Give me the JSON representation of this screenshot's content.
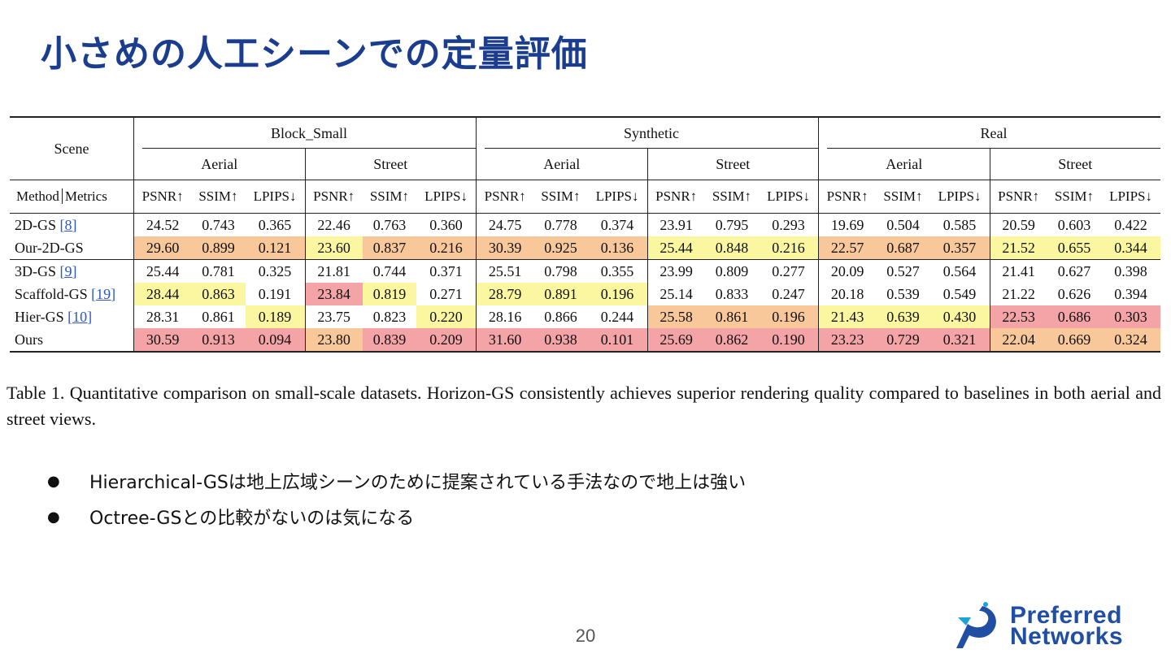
{
  "title": "小さめの人工シーンでの定量評価",
  "table": {
    "scene_label": "Scene",
    "method_label": "Method",
    "metrics_label": "Metrics",
    "datasets": [
      "Block_Small",
      "Synthetic",
      "Real"
    ],
    "views": [
      "Aerial",
      "Street",
      "Aerial",
      "Street",
      "Aerial",
      "Street"
    ],
    "metrics": [
      "PSNR↑",
      "SSIM↑",
      "LPIPS↓"
    ],
    "colors": {
      "red": "#f4a3a6",
      "orange": "#f9c89a",
      "yellow": "#fbf7a1"
    },
    "groups": [
      [
        {
          "name": "2D-GS",
          "ref": "[8]",
          "values": [
            "24.52",
            "0.743",
            "0.365",
            "22.46",
            "0.763",
            "0.360",
            "24.75",
            "0.778",
            "0.374",
            "23.91",
            "0.795",
            "0.293",
            "19.69",
            "0.504",
            "0.585",
            "20.59",
            "0.603",
            "0.422"
          ],
          "colors": [
            "",
            "",
            "",
            "",
            "",
            "",
            "",
            "",
            "",
            "",
            "",
            "",
            "",
            "",
            "",
            "",
            "",
            ""
          ]
        },
        {
          "name": "Our-2D-GS",
          "ref": "",
          "values": [
            "29.60",
            "0.899",
            "0.121",
            "23.60",
            "0.837",
            "0.216",
            "30.39",
            "0.925",
            "0.136",
            "25.44",
            "0.848",
            "0.216",
            "22.57",
            "0.687",
            "0.357",
            "21.52",
            "0.655",
            "0.344"
          ],
          "colors": [
            "orange",
            "orange",
            "orange",
            "yellow",
            "orange",
            "orange",
            "orange",
            "orange",
            "orange",
            "yellow",
            "yellow",
            "yellow",
            "orange",
            "orange",
            "orange",
            "yellow",
            "yellow",
            "yellow"
          ]
        }
      ],
      [
        {
          "name": "3D-GS",
          "ref": "[9]",
          "values": [
            "25.44",
            "0.781",
            "0.325",
            "21.81",
            "0.744",
            "0.371",
            "25.51",
            "0.798",
            "0.355",
            "23.99",
            "0.809",
            "0.277",
            "20.09",
            "0.527",
            "0.564",
            "21.41",
            "0.627",
            "0.398"
          ],
          "colors": [
            "",
            "",
            "",
            "",
            "",
            "",
            "",
            "",
            "",
            "",
            "",
            "",
            "",
            "",
            "",
            "",
            "",
            ""
          ]
        },
        {
          "name": "Scaffold-GS",
          "ref": "[19]",
          "values": [
            "28.44",
            "0.863",
            "0.191",
            "23.84",
            "0.819",
            "0.271",
            "28.79",
            "0.891",
            "0.196",
            "25.14",
            "0.833",
            "0.247",
            "20.18",
            "0.539",
            "0.549",
            "21.22",
            "0.626",
            "0.394"
          ],
          "colors": [
            "yellow",
            "yellow",
            "",
            "red",
            "yellow",
            "",
            "yellow",
            "yellow",
            "yellow",
            "",
            "",
            "",
            "",
            "",
            "",
            "",
            "",
            ""
          ]
        },
        {
          "name": "Hier-GS",
          "ref": "[10]",
          "values": [
            "28.31",
            "0.861",
            "0.189",
            "23.75",
            "0.823",
            "0.220",
            "28.16",
            "0.866",
            "0.244",
            "25.58",
            "0.861",
            "0.196",
            "21.43",
            "0.639",
            "0.430",
            "22.53",
            "0.686",
            "0.303"
          ],
          "colors": [
            "",
            "",
            "yellow",
            "",
            "",
            "yellow",
            "",
            "",
            "",
            "orange",
            "orange",
            "orange",
            "yellow",
            "yellow",
            "yellow",
            "red",
            "red",
            "red"
          ]
        },
        {
          "name": "Ours",
          "ref": "",
          "values": [
            "30.59",
            "0.913",
            "0.094",
            "23.80",
            "0.839",
            "0.209",
            "31.60",
            "0.938",
            "0.101",
            "25.69",
            "0.862",
            "0.190",
            "23.23",
            "0.729",
            "0.321",
            "22.04",
            "0.669",
            "0.324"
          ],
          "colors": [
            "red",
            "red",
            "red",
            "orange",
            "red",
            "red",
            "red",
            "red",
            "red",
            "red",
            "red",
            "red",
            "red",
            "red",
            "red",
            "orange",
            "orange",
            "orange"
          ]
        }
      ]
    ]
  },
  "caption": "Table 1.  Quantitative comparison on small-scale datasets.  Horizon-GS consistently achieves superior rendering quality compared to baselines in both aerial and street views.",
  "bullet_symbol": "●",
  "bullets": [
    "Hierarchical-GSは地上広域シーンのために提案されている手法なので地上は強い",
    "Octree-GSとの比較がないのは気になる"
  ],
  "page_number": "20",
  "logo": {
    "line1": "Preferred",
    "line2": "Networks"
  }
}
